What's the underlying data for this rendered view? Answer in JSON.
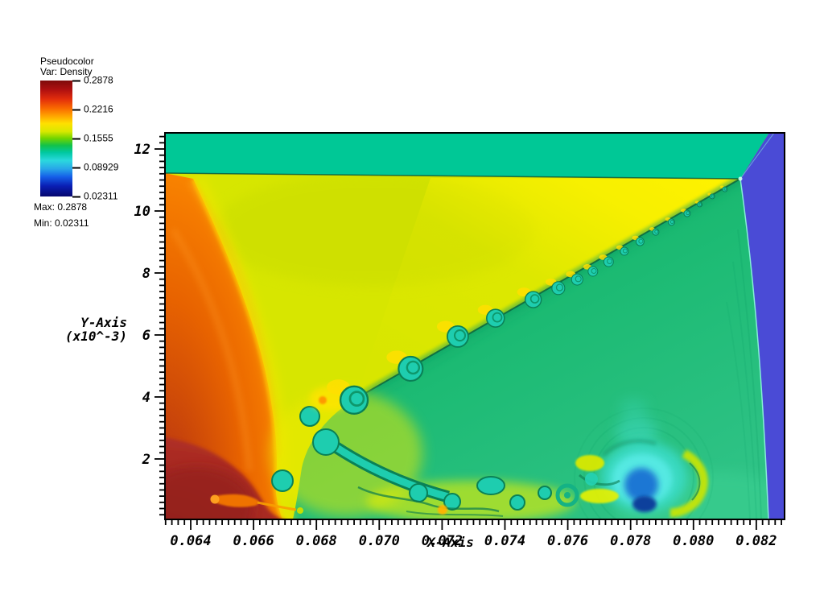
{
  "legend": {
    "title": "Pseudocolor",
    "var_label": "Var: Density",
    "ticks": [
      "0.2878",
      "0.2216",
      "0.1555",
      "0.08929",
      "0.02311"
    ],
    "max_label": "Max: 0.2878",
    "min_label": "Min: 0.02311",
    "colormap_stops": [
      [
        0,
        "#7E0A0A"
      ],
      [
        8,
        "#AF1010"
      ],
      [
        16,
        "#E22D0C"
      ],
      [
        24,
        "#F96A00"
      ],
      [
        31,
        "#FFA800"
      ],
      [
        37,
        "#FFE000"
      ],
      [
        44,
        "#D8E800"
      ],
      [
        50,
        "#6FD400"
      ],
      [
        56,
        "#12C24A"
      ],
      [
        62,
        "#00C8A0"
      ],
      [
        69,
        "#2BD8DE"
      ],
      [
        76,
        "#28A8E8"
      ],
      [
        83,
        "#1560E8"
      ],
      [
        91,
        "#0A1EB4"
      ],
      [
        100,
        "#06076E"
      ]
    ]
  },
  "axes": {
    "x": {
      "label": "X-Axis",
      "min": 0.06318,
      "max": 0.0829,
      "major_ticks": [
        0.064,
        0.066,
        0.068,
        0.07,
        0.072,
        0.074,
        0.076,
        0.078,
        0.08,
        0.082
      ],
      "minor_step": 0.0002,
      "decimals": 3
    },
    "y": {
      "label_line1": "Y-Axis",
      "label_line2": "(x10^-3)",
      "min": 0.05,
      "max": 12.52,
      "major_ticks": [
        2,
        4,
        6,
        8,
        10,
        12
      ],
      "minor_step": 0.2
    }
  },
  "colors": {
    "background": "#FFFFFF",
    "top_band": "#00C896",
    "incident_region": "#4A4BD6",
    "wedge_chartreuse": "#D7E600",
    "below_slip_green": "#1DBB74",
    "fan_orange": "#EE6A00",
    "wall_dark_red": "#A32621",
    "vortex_cyan": "#3ADBC6",
    "vortex_core_blue": "#1C77D4",
    "vortex_core_navy": "#0B3F9C",
    "kh_vortex": "#1ECDAF",
    "kh_outline": "#0A8157",
    "hot_spot": "#FFDF00",
    "bright_yellow": "#FFF200"
  },
  "chart_data": {
    "type": "heatmap",
    "plot_style": "pseudocolor (double Mach reflection density field)",
    "variable": "Density",
    "min": 0.02311,
    "max": 0.2878,
    "colorbar_ticks": [
      0.2878,
      0.2216,
      0.1555,
      0.08929,
      0.02311
    ],
    "xlabel": "X-Axis",
    "ylabel": "Y-Axis (x10^-3)",
    "x_range": [
      0.06318,
      0.0829
    ],
    "y_range_x10m3": [
      0.05,
      12.52
    ],
    "x_major_ticks": [
      0.064,
      0.066,
      0.068,
      0.07,
      0.072,
      0.074,
      0.076,
      0.078,
      0.08,
      0.082
    ],
    "y_major_ticks": [
      2,
      4,
      6,
      8,
      10,
      12
    ],
    "grid": false,
    "legend_position": "top-left",
    "regions": [
      {
        "name": "top post-shock band",
        "approx_density": 0.13,
        "color": "#00C896",
        "extent": "full width, y > ~11.0e-3"
      },
      {
        "name": "low-density incident region",
        "approx_density": 0.035,
        "color": "#4A4BD6",
        "extent": "right edge, x > ~0.0815"
      },
      {
        "name": "reflected-shock fan",
        "approx_density": 0.24,
        "color": "#EE6A00",
        "extent": "curved bow on left"
      },
      {
        "name": "near-wall high density",
        "approx_density": 0.28,
        "color": "#A32621",
        "extent": "bottom-left corner"
      },
      {
        "name": "post-shock wedge",
        "approx_density": 0.17,
        "color": "#D7E600",
        "extent": "large triangle above slip line"
      },
      {
        "name": "below slip line",
        "approx_density": 0.12,
        "color": "#1DBB74",
        "extent": "between slip line and incident shock"
      },
      {
        "name": "wall vortex core",
        "approx_density": 0.06,
        "color": "#1C77D4",
        "extent": "x ~ 0.0784, y ~ 1.4e-3"
      }
    ],
    "features": {
      "triple_point": [
        0.0815,
        11.0
      ],
      "slip_line": {
        "from": [
          0.0692,
          3.9
        ],
        "to": [
          0.0815,
          11.0
        ]
      },
      "wall_vortex_center": [
        0.0784,
        1.4
      ],
      "kh_vortices": [
        [
          0.0692,
          3.9,
          17
        ],
        [
          0.071,
          4.91,
          15
        ],
        [
          0.0725,
          5.95,
          13
        ],
        [
          0.0737,
          6.54,
          11
        ],
        [
          0.0749,
          7.14,
          10
        ],
        [
          0.0757,
          7.51,
          8
        ],
        [
          0.0763,
          7.79,
          7
        ],
        [
          0.0768,
          8.05,
          6
        ],
        [
          0.0773,
          8.36,
          6
        ],
        [
          0.0778,
          8.7,
          5
        ],
        [
          0.0783,
          9.01,
          5
        ],
        [
          0.0788,
          9.32,
          4
        ],
        [
          0.0793,
          9.64,
          4
        ],
        [
          0.0798,
          9.92,
          4
        ],
        [
          0.0802,
          10.21,
          3
        ],
        [
          0.0806,
          10.47,
          3
        ],
        [
          0.081,
          10.7,
          3
        ]
      ]
    }
  }
}
